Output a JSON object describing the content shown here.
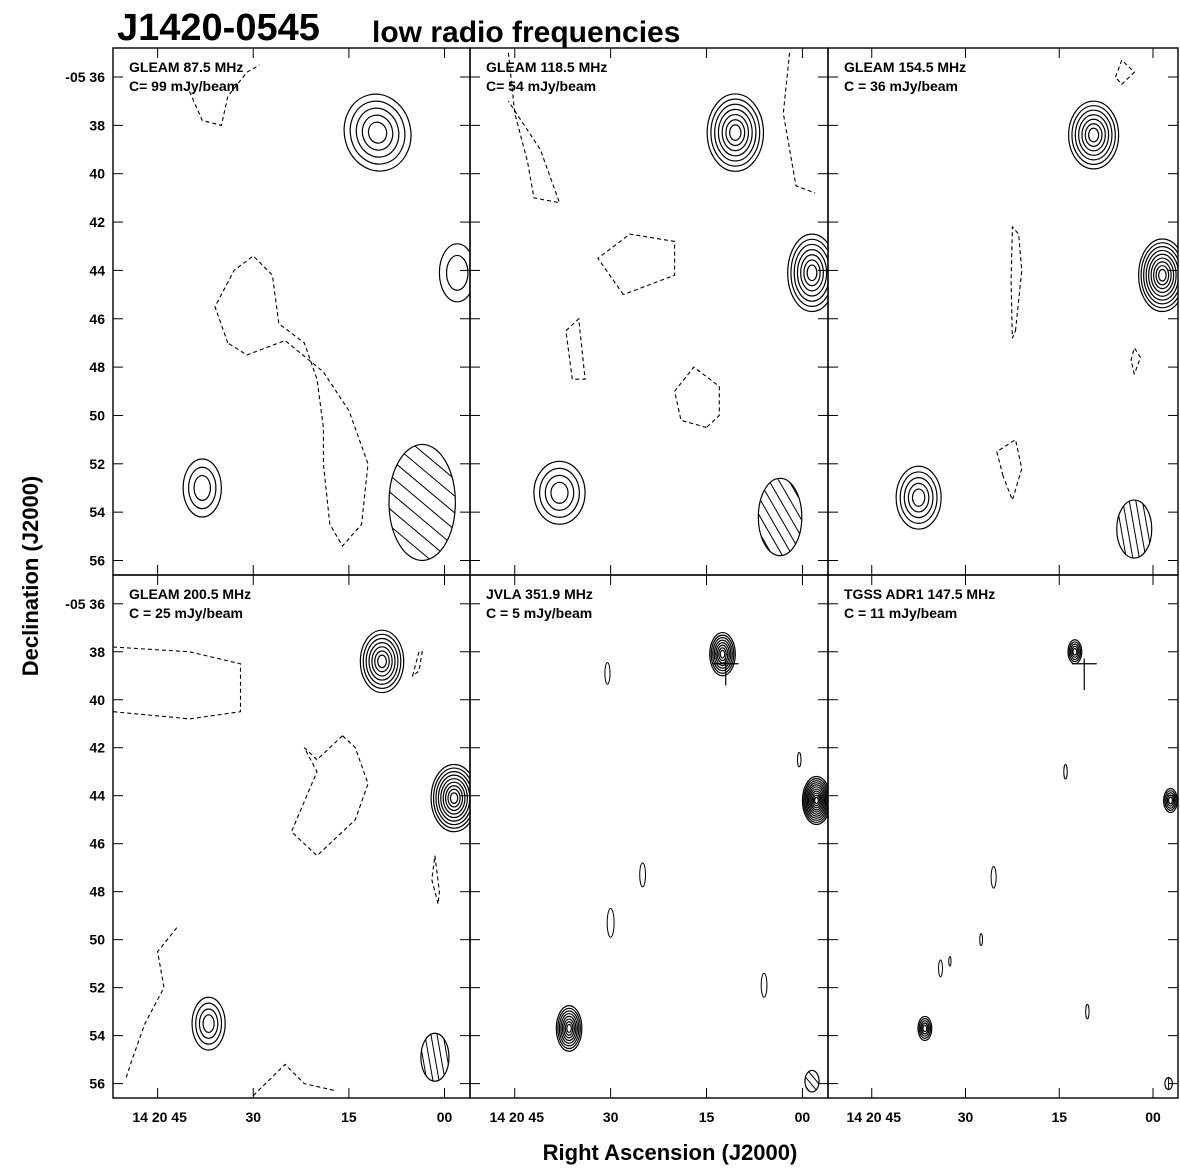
{
  "figure": {
    "title": "J1420-0545",
    "subtitle": "low radio frequencies",
    "xlabel": "Right Ascension (J2000)",
    "ylabel": "Declination (J2000)"
  },
  "chart_data": {
    "type": "contour",
    "grid": "2x3",
    "x_tick_labels": [
      "14 20 45",
      "30",
      "15",
      "00"
    ],
    "x_tick_seconds": [
      45,
      30,
      15,
      0
    ],
    "x_range_seconds": [
      52,
      -4
    ],
    "y_tick_labels": [
      "-05 36",
      "38",
      "40",
      "42",
      "44",
      "46",
      "48",
      "50",
      "52",
      "54",
      "56"
    ],
    "y_tick_arcmin": [
      36,
      38,
      40,
      42,
      44,
      46,
      48,
      50,
      52,
      54,
      56
    ],
    "y_range_arcmin": [
      34.8,
      56.6
    ],
    "panels": [
      {
        "name": "GLEAM 87.5 MHz",
        "line1": "GLEAM 87.5 MHz",
        "line2": "C= 99 mJy/beam",
        "sources": [
          {
            "ra": 10.5,
            "dec": 38.3,
            "sx": 5.2,
            "sy": 1.6,
            "levels": 5,
            "rot": -12
          },
          {
            "ra": -2.0,
            "dec": 44.1,
            "sx": 2.8,
            "sy": 1.2,
            "levels": 2,
            "rot": 0
          },
          {
            "ra": 38.0,
            "dec": 53.0,
            "sx": 3.0,
            "sy": 1.2,
            "levels": 3,
            "rot": 0
          }
        ],
        "negative": [
          [
            [
              40,
              36.6
            ],
            [
              38,
              37.8
            ],
            [
              35,
              38.0
            ],
            [
              34,
              36.8
            ],
            [
              31,
              35.8
            ],
            [
              29,
              35.5
            ]
          ],
          [
            [
              34,
              47.0
            ],
            [
              36,
              45.5
            ],
            [
              33,
              44.0
            ],
            [
              30,
              43.4
            ],
            [
              27,
              44.2
            ],
            [
              26,
              46.2
            ],
            [
              22,
              47.0
            ],
            [
              20,
              48.5
            ],
            [
              19,
              50.5
            ],
            [
              19,
              52.0
            ],
            [
              18,
              54.5
            ],
            [
              16,
              55.4
            ],
            [
              13,
              54.5
            ],
            [
              12,
              52.0
            ],
            [
              15,
              49.8
            ],
            [
              19,
              48.2
            ],
            [
              25,
              46.9
            ],
            [
              31,
              47.5
            ],
            [
              34,
              47.0
            ]
          ]
        ],
        "beam": {
          "ra": 3.5,
          "dec": 53.6,
          "sx": 5.2,
          "sy": 2.4,
          "hatch_angle": 40
        }
      },
      {
        "name": "GLEAM 118.5 MHz",
        "line1": "GLEAM 118.5 MHz",
        "line2": "C= 54 mJy/beam",
        "sources": [
          {
            "ra": 10.5,
            "dec": 38.3,
            "sx": 4.4,
            "sy": 1.6,
            "levels": 7,
            "rot": 0
          },
          {
            "ra": -1.5,
            "dec": 44.1,
            "sx": 3.8,
            "sy": 1.6,
            "levels": 7,
            "rot": 0
          },
          {
            "ra": 38.0,
            "dec": 53.2,
            "sx": 4.0,
            "sy": 1.3,
            "levels": 4,
            "rot": 0
          }
        ],
        "negative": [
          [
            [
              46,
              35.0
            ],
            [
              45,
              37.5
            ],
            [
              43,
              39.5
            ],
            [
              42,
              41.0
            ],
            [
              38,
              41.2
            ],
            [
              41,
              39.0
            ],
            [
              46,
              37.0
            ]
          ],
          [
            [
              28,
              45.0
            ],
            [
              32,
              43.5
            ],
            [
              27,
              42.5
            ],
            [
              20,
              42.8
            ],
            [
              20,
              44.2
            ],
            [
              28,
              45.0
            ]
          ],
          [
            [
              36,
              48.5
            ],
            [
              37,
              46.5
            ],
            [
              35,
              46.0
            ],
            [
              34,
              48.5
            ],
            [
              36,
              48.5
            ]
          ],
          [
            [
              15,
              50.5
            ],
            [
              19,
              50.2
            ],
            [
              20,
              49.0
            ],
            [
              17,
              48.0
            ],
            [
              13,
              48.8
            ],
            [
              13,
              50.0
            ],
            [
              15,
              50.5
            ]
          ],
          [
            [
              2,
              35.0
            ],
            [
              3,
              37.5
            ],
            [
              1,
              40.5
            ],
            [
              -2,
              40.8
            ]
          ]
        ],
        "beam": {
          "ra": 3.5,
          "dec": 54.2,
          "sx": 3.4,
          "sy": 1.6,
          "hatch_angle": 60
        }
      },
      {
        "name": "GLEAM 154.5 MHz",
        "line1": "GLEAM 154.5 MHz",
        "line2": "C = 36 mJy/beam",
        "sources": [
          {
            "ra": 9.5,
            "dec": 38.4,
            "sx": 4.0,
            "sy": 1.4,
            "levels": 7,
            "rot": 0
          },
          {
            "ra": -1.5,
            "dec": 44.2,
            "sx": 3.8,
            "sy": 1.5,
            "levels": 9,
            "rot": 0
          },
          {
            "ra": 37.5,
            "dec": 53.4,
            "sx": 3.6,
            "sy": 1.3,
            "levels": 5,
            "rot": 0
          }
        ],
        "negative": [
          [
            [
              22,
              46.5
            ],
            [
              21,
              44.0
            ],
            [
              21.5,
              42.5
            ],
            [
              22.5,
              42.2
            ],
            [
              22.7,
              44.5
            ],
            [
              22.5,
              46.8
            ],
            [
              22,
              46.5
            ]
          ],
          [
            [
              24,
              52.5
            ],
            [
              25,
              51.5
            ],
            [
              22,
              51.0
            ],
            [
              21,
              52.2
            ],
            [
              22.5,
              53.5
            ],
            [
              24,
              52.5
            ]
          ],
          [
            [
              3,
              48.3
            ],
            [
              3.5,
              47.7
            ],
            [
              3,
              47.2
            ],
            [
              2,
              47.6
            ],
            [
              3,
              48.3
            ]
          ],
          [
            [
              6,
              36.0
            ],
            [
              5,
              35.3
            ],
            [
              3,
              35.8
            ],
            [
              5,
              36.3
            ],
            [
              6,
              36.0
            ]
          ]
        ],
        "beam": {
          "ra": 3.0,
          "dec": 54.7,
          "sx": 2.8,
          "sy": 1.2,
          "hatch_angle": 80
        }
      },
      {
        "name": "GLEAM 200.5 MHz",
        "line1": "GLEAM 200.5 MHz",
        "line2": "C = 25 mJy/beam",
        "sources": [
          {
            "ra": 9.8,
            "dec": 38.4,
            "sx": 3.4,
            "sy": 1.3,
            "levels": 7,
            "rot": 0
          },
          {
            "ra": -1.5,
            "dec": 44.1,
            "sx": 3.6,
            "sy": 1.4,
            "levels": 9,
            "rot": 0
          },
          {
            "ra": 37.0,
            "dec": 53.5,
            "sx": 2.6,
            "sy": 1.1,
            "levels": 4,
            "rot": 0
          }
        ],
        "negative": [
          [
            [
              52,
              37.8
            ],
            [
              40,
              38.0
            ],
            [
              32,
              38.5
            ],
            [
              32,
              40.5
            ],
            [
              40,
              40.8
            ],
            [
              52,
              40.5
            ]
          ],
          [
            [
              16,
              41.5
            ],
            [
              20,
              42.5
            ],
            [
              22,
              42.0
            ],
            [
              20,
              43.0
            ],
            [
              24,
              45.5
            ],
            [
              20,
              46.5
            ],
            [
              14,
              45.0
            ],
            [
              12,
              43.5
            ],
            [
              14,
              42.0
            ],
            [
              16,
              41.5
            ]
          ],
          [
            [
              4,
              38.0
            ],
            [
              5,
              39.0
            ],
            [
              4,
              38.8
            ],
            [
              3.5,
              38.0
            ],
            [
              4,
              38.0
            ]
          ],
          [
            [
              1,
              48.5
            ],
            [
              2,
              47.5
            ],
            [
              1.5,
              46.5
            ],
            [
              0.8,
              48.0
            ],
            [
              1,
              48.5
            ]
          ],
          [
            [
              42,
              49.5
            ],
            [
              45,
              50.5
            ],
            [
              44,
              52.0
            ],
            [
              47,
              53.5
            ],
            [
              49,
              55.0
            ],
            [
              50,
              55.8
            ]
          ],
          [
            [
              30,
              56.5
            ],
            [
              25,
              55.2
            ],
            [
              22,
              56.0
            ],
            [
              17,
              56.3
            ]
          ]
        ],
        "beam": {
          "ra": 1.5,
          "dec": 54.9,
          "sx": 2.2,
          "sy": 1.0,
          "hatch_angle": 80
        }
      },
      {
        "name": "JVLA 351.9 MHz",
        "line1": "JVLA 351.9 MHz",
        "line2": "C = 5 mJy/beam",
        "sources": [
          {
            "ra": 12.5,
            "dec": 38.1,
            "sx": 2.0,
            "sy": 0.9,
            "levels": 8,
            "rot": 0
          },
          {
            "ra": -2.2,
            "dec": 44.2,
            "sx": 2.2,
            "sy": 1.0,
            "levels": 11,
            "rot": 0
          },
          {
            "ra": 36.5,
            "dec": 53.7,
            "sx": 2.0,
            "sy": 0.95,
            "levels": 8,
            "rot": 0
          }
        ],
        "negative": [],
        "positive_blobs": [
          {
            "ra": 30.5,
            "dec": 38.9,
            "r": 0.9
          },
          {
            "ra": 25.0,
            "dec": 47.3,
            "r": 1.0
          },
          {
            "ra": 30.0,
            "dec": 49.3,
            "r": 1.2
          },
          {
            "ra": 6.0,
            "dec": 51.9,
            "r": 1.0
          },
          {
            "ra": 0.5,
            "dec": 42.5,
            "r": 0.6
          }
        ],
        "cross": {
          "ra": 12.0,
          "dec": 38.5,
          "w": 4.0,
          "h": 0.9
        },
        "beam": {
          "ra": -1.5,
          "dec": 55.9,
          "sx": 1.1,
          "sy": 0.45,
          "hatch_angle": 50
        }
      },
      {
        "name": "TGSS ADR1 147.5 MHz",
        "line1": "TGSS ADR1 147.5 MHz",
        "line2": "C = 11 mJy/beam",
        "sources": [
          {
            "ra": 12.5,
            "dec": 38.0,
            "sx": 1.1,
            "sy": 0.5,
            "levels": 5,
            "rot": 0
          },
          {
            "ra": -2.8,
            "dec": 44.2,
            "sx": 1.1,
            "sy": 0.5,
            "levels": 5,
            "rot": 0
          },
          {
            "ra": 36.5,
            "dec": 53.7,
            "sx": 1.1,
            "sy": 0.5,
            "levels": 5,
            "rot": 0
          }
        ],
        "negative": [],
        "positive_blobs": [
          {
            "ra": 25.5,
            "dec": 47.4,
            "r": 0.9
          },
          {
            "ra": 27.5,
            "dec": 50.0,
            "r": 0.5
          },
          {
            "ra": 34.0,
            "dec": 51.2,
            "r": 0.7
          },
          {
            "ra": 32.5,
            "dec": 50.9,
            "r": 0.4
          },
          {
            "ra": 14.0,
            "dec": 43.0,
            "r": 0.6
          },
          {
            "ra": 10.5,
            "dec": 53.0,
            "r": 0.6
          }
        ],
        "cross": {
          "ra": 11.0,
          "dec": 38.5,
          "w": 4.0,
          "h": 1.1
        },
        "beam": {
          "ra": -2.5,
          "dec": 56.0,
          "sx": 0.6,
          "sy": 0.25,
          "hatch_angle": 90
        }
      }
    ]
  }
}
